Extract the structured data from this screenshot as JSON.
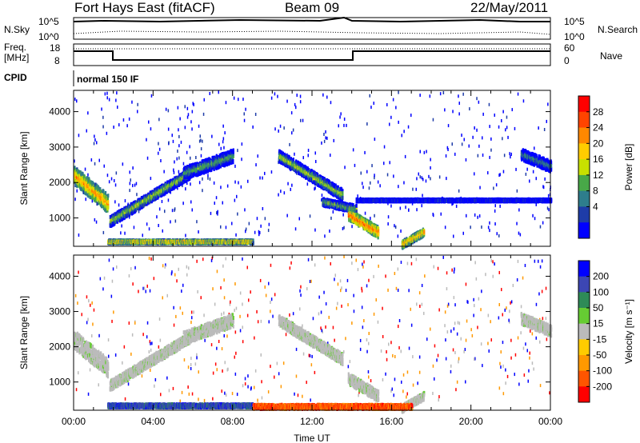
{
  "header": {
    "station": "Fort Hays East (fitACF)",
    "beam": "Beam 09",
    "date": "22/May/2011"
  },
  "top_panels": {
    "nsky_label": "N.Sky",
    "nsky_ticks": [
      "10^5",
      "10^0"
    ],
    "nsearch_label": "N.Search",
    "nsearch_ticks": [
      "10^5",
      "10^0"
    ],
    "freq_label_1": "Freq.",
    "freq_label_2": "[MHz]",
    "freq_ticks": [
      "18",
      "8"
    ],
    "nave_label": "Nave",
    "nave_ticks": [
      "60",
      "0"
    ],
    "cpid_label": "CPID",
    "cpid_value": "normal 150 IF"
  },
  "chart_data": [
    {
      "type": "heatmap",
      "name": "power",
      "ylabel": "Slant Range [km]",
      "xlabel": "",
      "ylim": [
        200,
        4600
      ],
      "xlim": [
        0,
        24
      ],
      "yticks": [
        "1000",
        "2000",
        "3000",
        "4000"
      ],
      "colorbar_label": "Power [dB]",
      "colorbar_ticks": [
        "28",
        "24",
        "20",
        "16",
        "12",
        "8",
        "4"
      ],
      "colorbar_colors": [
        "#ff0000",
        "#ff4400",
        "#ff8800",
        "#ffcc00",
        "#c8e000",
        "#48a848",
        "#2e7d8c",
        "#1e3ca8",
        "#0000ff"
      ],
      "bands": [
        {
          "t": [
            0.0,
            1.7
          ],
          "r": [
            2250,
            1450
          ],
          "w": 500,
          "level": 0.85
        },
        {
          "t": [
            1.8,
            5.8
          ],
          "r": [
            950,
            2300
          ],
          "w": 280,
          "level": 0.6
        },
        {
          "t": [
            5.5,
            8.0
          ],
          "r": [
            2300,
            2800
          ],
          "w": 350,
          "level": 0.5
        },
        {
          "t": [
            10.3,
            13.5
          ],
          "r": [
            2800,
            1700
          ],
          "w": 300,
          "level": 0.6
        },
        {
          "t": [
            12.5,
            14.2
          ],
          "r": [
            1500,
            1300
          ],
          "w": 200,
          "level": 0.55
        },
        {
          "t": [
            13.8,
            15.3
          ],
          "r": [
            1150,
            650
          ],
          "w": 300,
          "level": 0.95
        },
        {
          "t": [
            16.5,
            17.6
          ],
          "r": [
            300,
            650
          ],
          "w": 200,
          "level": 0.85
        },
        {
          "t": [
            1.7,
            9.0
          ],
          "r": [
            380,
            380
          ],
          "w": 90,
          "level": 0.8
        },
        {
          "t": [
            14.2,
            24.0
          ],
          "r": [
            1550,
            1550
          ],
          "w": 60,
          "level": 0.25
        },
        {
          "t": [
            22.5,
            24.0
          ],
          "r": [
            2850,
            2500
          ],
          "w": 300,
          "level": 0.4
        }
      ]
    },
    {
      "type": "heatmap",
      "name": "velocity",
      "ylabel": "Slant Range [km]",
      "xlabel": "Time UT",
      "ylim": [
        200,
        4600
      ],
      "xlim": [
        0,
        24
      ],
      "xticks": [
        "00:00",
        "04:00",
        "08:00",
        "12:00",
        "16:00",
        "20:00",
        "00:00"
      ],
      "yticks": [
        "1000",
        "2000",
        "3000",
        "4000"
      ],
      "colorbar_label": "Velocity [m s⁻¹]",
      "colorbar_ticks": [
        "200",
        "100",
        "50",
        "15",
        "-15",
        "-50",
        "-100",
        "-200"
      ],
      "colorbar_colors": [
        "#0000ff",
        "#3c46b4",
        "#2e8b57",
        "#66cc33",
        "#bbbbbb",
        "#ffcc00",
        "#ff9900",
        "#ff5500",
        "#ff0000"
      ],
      "bands": [
        {
          "t": [
            0.0,
            1.7
          ],
          "r": [
            2250,
            1450
          ],
          "w": 500,
          "level": 0.0
        },
        {
          "t": [
            1.8,
            5.8
          ],
          "r": [
            950,
            2300
          ],
          "w": 280,
          "level": 0.0
        },
        {
          "t": [
            5.5,
            8.0
          ],
          "r": [
            2300,
            2800
          ],
          "w": 350,
          "level": 0.0
        },
        {
          "t": [
            10.3,
            13.5
          ],
          "r": [
            2800,
            1700
          ],
          "w": 300,
          "level": 0.0
        },
        {
          "t": [
            13.8,
            15.3
          ],
          "r": [
            1150,
            650
          ],
          "w": 300,
          "level": 0.0
        },
        {
          "t": [
            16.5,
            17.6
          ],
          "r": [
            300,
            650
          ],
          "w": 200,
          "level": 0.0
        },
        {
          "t": [
            22.5,
            24.0
          ],
          "r": [
            2850,
            2500
          ],
          "w": 300,
          "level": 0.0
        },
        {
          "t": [
            1.7,
            9.0
          ],
          "r": [
            380,
            380
          ],
          "w": 90,
          "level": 1.0
        },
        {
          "t": [
            9.0,
            17.0
          ],
          "r": [
            350,
            350
          ],
          "w": 120,
          "level": -1.0
        }
      ]
    }
  ]
}
